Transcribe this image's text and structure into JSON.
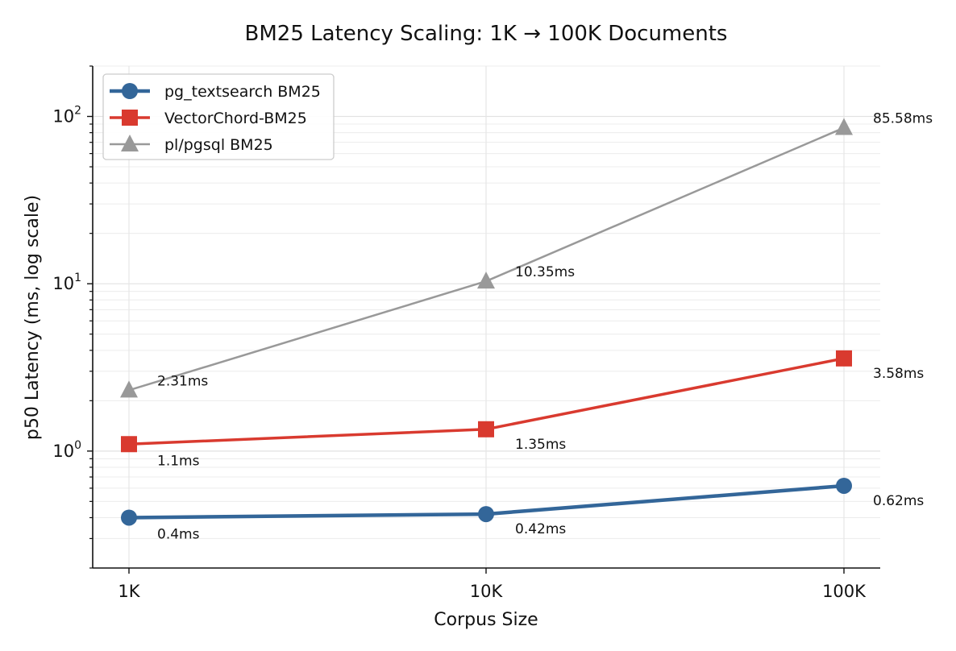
{
  "chart_data": {
    "type": "line",
    "title": "BM25 Latency Scaling: 1K → 100K Documents",
    "xlabel": "Corpus Size",
    "ylabel": "p50 Latency (ms, log scale)",
    "x_scale": "categorical",
    "y_scale": "log",
    "ylim": [
      0.2,
      200
    ],
    "grid": true,
    "legend_position": "top-left",
    "categories": [
      "1K",
      "10K",
      "100K"
    ],
    "y_major_ticks": [
      {
        "value": 1,
        "base": "10",
        "exp": "0"
      },
      {
        "value": 10,
        "base": "10",
        "exp": "1"
      },
      {
        "value": 100,
        "base": "10",
        "exp": "2"
      }
    ],
    "series": [
      {
        "name": "pg_textsearch BM25",
        "values": [
          0.4,
          0.42,
          0.62
        ],
        "labels": [
          "0.4ms",
          "0.42ms",
          "0.62ms"
        ],
        "color": "#336699",
        "marker": "circle",
        "line_width": "thick"
      },
      {
        "name": "VectorChord-BM25",
        "values": [
          1.1,
          1.35,
          3.58
        ],
        "labels": [
          "1.1ms",
          "1.35ms",
          "3.58ms"
        ],
        "color": "#d93a2f",
        "marker": "square",
        "line_width": "medium"
      },
      {
        "name": "pl/pgsql BM25",
        "values": [
          2.31,
          10.35,
          85.58
        ],
        "labels": [
          "2.31ms",
          "10.35ms",
          "85.58ms"
        ],
        "color": "#999999",
        "marker": "triangle",
        "line_width": "thin"
      }
    ]
  }
}
